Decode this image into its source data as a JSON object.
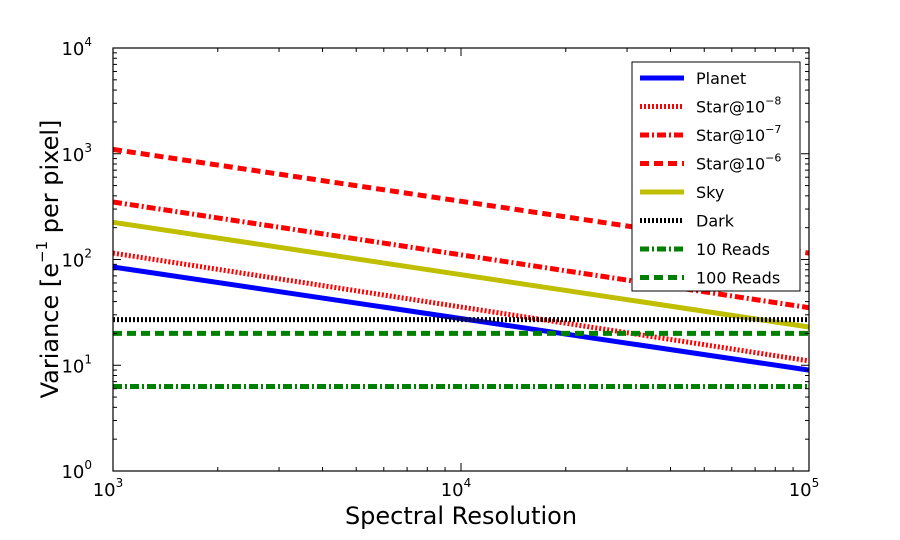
{
  "chart_data": {
    "type": "line",
    "xscale": "log",
    "yscale": "log",
    "xlim": [
      1000,
      100000
    ],
    "ylim": [
      1,
      10000
    ],
    "xlabel": "Spectral Resolution",
    "ylabel": "Variance [e⁻¹ per pixel]",
    "ylabel_parts": {
      "pre": "Variance [e",
      "sup": "−1",
      "post": " per pixel]"
    },
    "x_ticks": [
      {
        "value": 1000,
        "base": "10",
        "exp": "3"
      },
      {
        "value": 10000,
        "base": "10",
        "exp": "4"
      },
      {
        "value": 100000,
        "base": "10",
        "exp": "5"
      }
    ],
    "y_ticks": [
      {
        "value": 1,
        "base": "10",
        "exp": "0"
      },
      {
        "value": 10,
        "base": "10",
        "exp": "1"
      },
      {
        "value": 100,
        "base": "10",
        "exp": "2"
      },
      {
        "value": 1000,
        "base": "10",
        "exp": "3"
      },
      {
        "value": 10000,
        "base": "10",
        "exp": "4"
      }
    ],
    "series": [
      {
        "name": "Planet",
        "legend_text": "Planet",
        "legend_sup": "",
        "color": "#0000ff",
        "style": "solid",
        "x": [
          1000,
          100000
        ],
        "y": [
          85,
          9
        ]
      },
      {
        "name": "Star@10^-8",
        "legend_text": "Star@10",
        "legend_sup": "−8",
        "color": "#ff0000",
        "style": "dotted",
        "x": [
          1000,
          100000
        ],
        "y": [
          115,
          11
        ]
      },
      {
        "name": "Star@10^-7",
        "legend_text": "Star@10",
        "legend_sup": "−7",
        "color": "#ff0000",
        "style": "dashdot",
        "x": [
          1000,
          100000
        ],
        "y": [
          350,
          35
        ]
      },
      {
        "name": "Star@10^-6",
        "legend_text": "Star@10",
        "legend_sup": "−6",
        "color": "#ff0000",
        "style": "dashed",
        "x": [
          1000,
          100000
        ],
        "y": [
          1100,
          115
        ]
      },
      {
        "name": "Sky",
        "legend_text": "Sky",
        "legend_sup": "",
        "color": "#bfbf00",
        "style": "solid",
        "x": [
          1000,
          100000
        ],
        "y": [
          225,
          23
        ]
      },
      {
        "name": "Dark",
        "legend_text": "Dark",
        "legend_sup": "",
        "color": "#000000",
        "style": "dotted",
        "x": [
          1000,
          100000
        ],
        "y": [
          27,
          27
        ]
      },
      {
        "name": "10 Reads",
        "legend_text": "10 Reads",
        "legend_sup": "",
        "color": "#008000",
        "style": "dashdot",
        "x": [
          1000,
          100000
        ],
        "y": [
          6.3,
          6.3
        ]
      },
      {
        "name": "100 Reads",
        "legend_text": "100 Reads",
        "legend_sup": "",
        "color": "#008000",
        "style": "dashed",
        "x": [
          1000,
          100000
        ],
        "y": [
          20,
          20
        ]
      }
    ],
    "legend": {
      "placement": "top-right"
    },
    "grid": false
  }
}
